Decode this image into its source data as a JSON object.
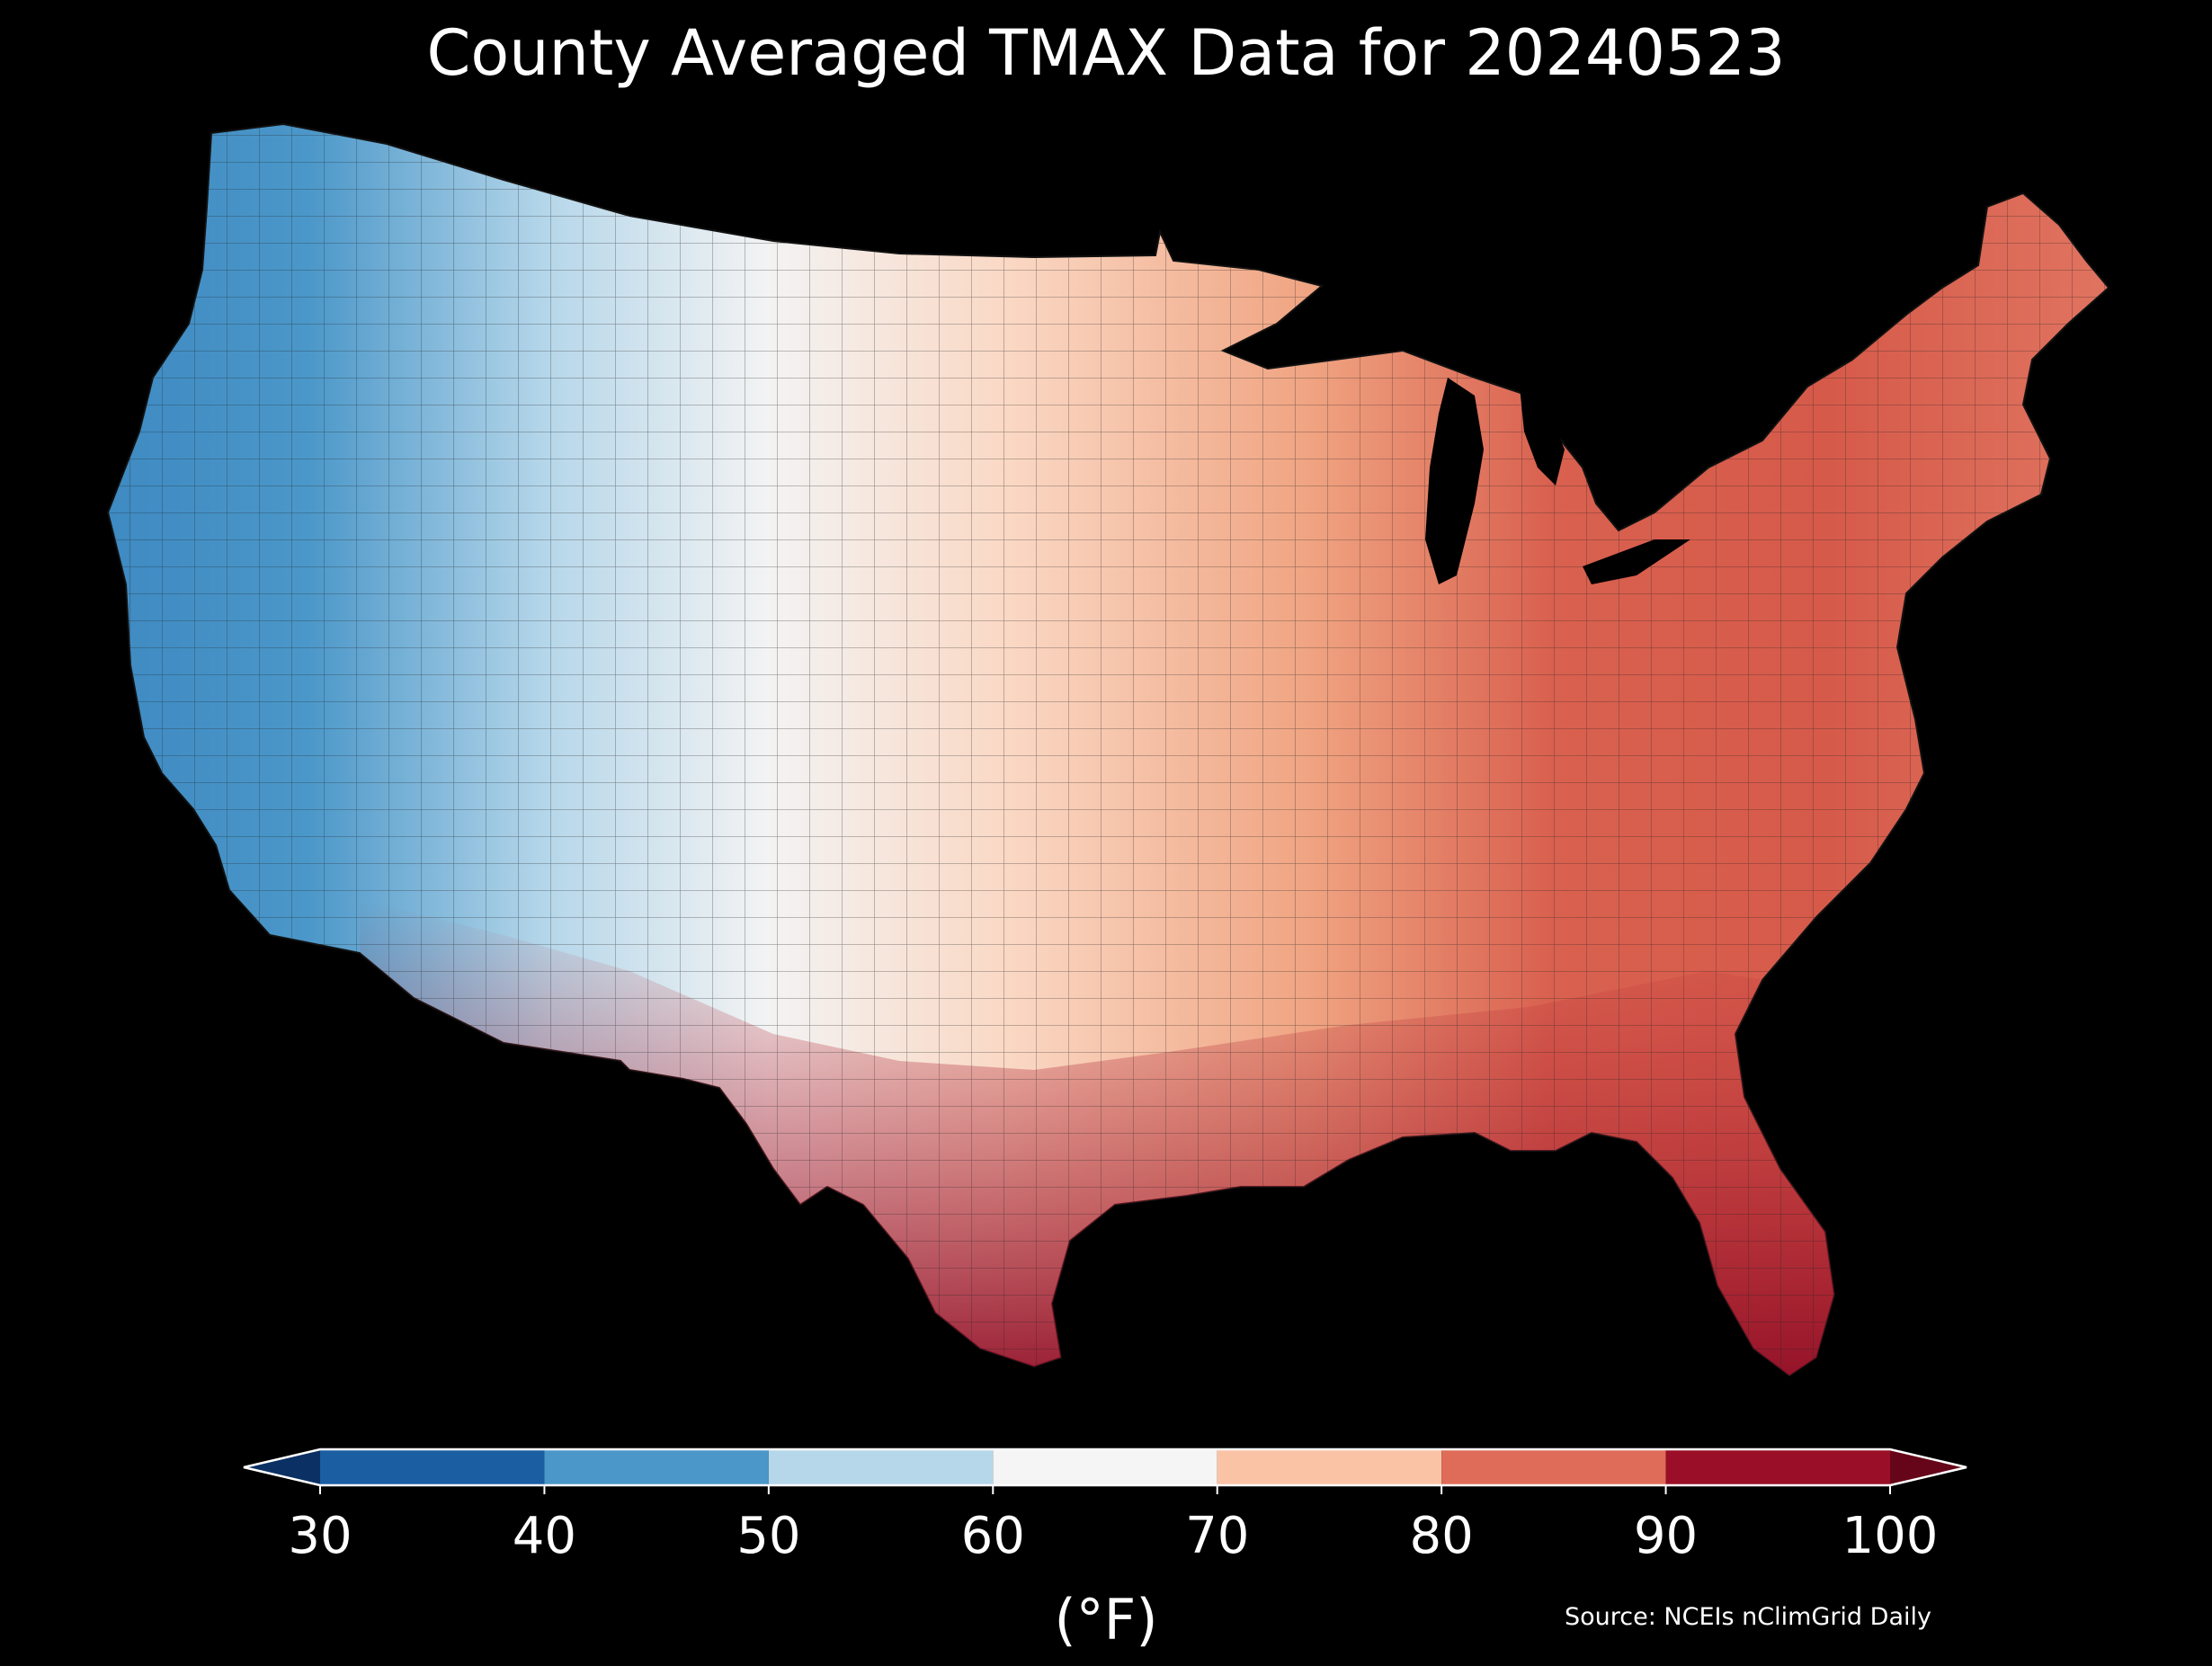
{
  "title": "County Averaged TMAX Data for 20240523",
  "colorbar": {
    "ticks": [
      "30",
      "40",
      "50",
      "60",
      "70",
      "80",
      "90",
      "100"
    ],
    "bins": [
      {
        "from": 30,
        "to": 40,
        "color": "#1b5ea2"
      },
      {
        "from": 40,
        "to": 50,
        "color": "#4b97c9"
      },
      {
        "from": 50,
        "to": 60,
        "color": "#b6d7ea"
      },
      {
        "from": 60,
        "to": 70,
        "color": "#f5f5f5"
      },
      {
        "from": 70,
        "to": 80,
        "color": "#fbc3a6"
      },
      {
        "from": 80,
        "to": 90,
        "color": "#df6c58"
      },
      {
        "from": 90,
        "to": 100,
        "color": "#9a0f27"
      }
    ],
    "under_color": "#0b3063",
    "over_color": "#660519",
    "unit": "(°F)"
  },
  "source": "Source: NCEIs nClimGrid Daily",
  "colors": {
    "background": "#000000",
    "text": "#ffffff",
    "county_border": "#222222"
  }
}
